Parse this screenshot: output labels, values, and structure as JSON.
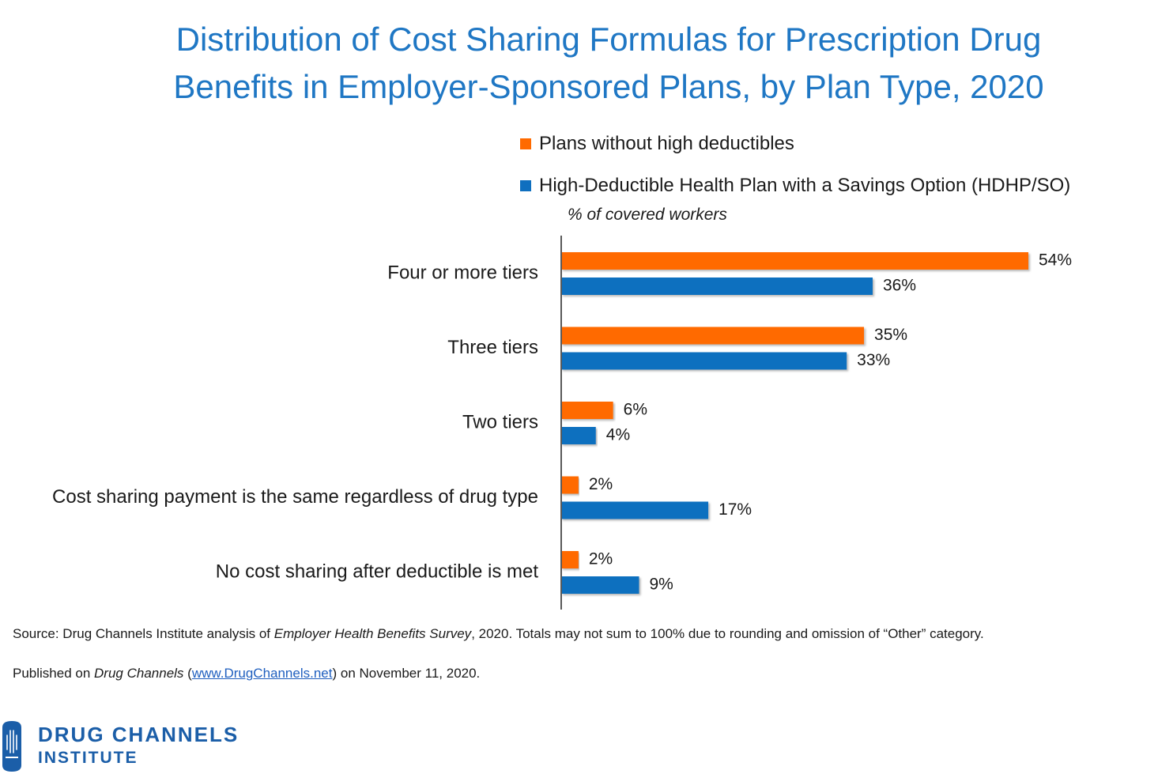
{
  "title": {
    "line1": "Distribution of Cost Sharing Formulas for Prescription Drug",
    "line2": "Benefits in Employer-Sponsored Plans, by Plan Type, 2020"
  },
  "legend": {
    "series_a": "Plans without high deductibles",
    "series_b": "High-Deductible Health Plan with a Savings Option (HDHP/SO)"
  },
  "axis_note": "% of covered workers",
  "colors": {
    "title": "#1f77c4",
    "series_a": "#ff6a00",
    "series_b": "#0f6fbf",
    "axis": "#595959"
  },
  "chart_data": {
    "type": "bar",
    "orientation": "horizontal",
    "title": "Distribution of Cost Sharing Formulas for Prescription Drug Benefits in Employer-Sponsored Plans, by Plan Type, 2020",
    "xlabel": "% of covered workers",
    "ylabel": "",
    "xlim": [
      0,
      60
    ],
    "grid": false,
    "legend_position": "top-right",
    "categories": [
      "Four or more tiers",
      "Three tiers",
      "Two tiers",
      "Cost sharing payment is the same regardless of drug type",
      "No cost sharing after deductible is met"
    ],
    "series": [
      {
        "name": "Plans without high deductibles",
        "color": "#ff6a00",
        "values": [
          54,
          35,
          6,
          2,
          2
        ],
        "labels": [
          "54%",
          "35%",
          "6%",
          "2%",
          "2%"
        ]
      },
      {
        "name": "High-Deductible Health Plan with a Savings Option (HDHP/SO)",
        "color": "#0f6fbf",
        "values": [
          36,
          33,
          4,
          17,
          9
        ],
        "labels": [
          "36%",
          "33%",
          "4%",
          "17%",
          "9%"
        ]
      }
    ]
  },
  "footer": {
    "source_prefix": "Source: Drug Channels Institute analysis of ",
    "source_italic": "Employer Health Benefits Survey",
    "source_suffix": ", 2020. Totals may not sum to 100% due to rounding and omission of “Other” category.",
    "published_prefix": "Published on ",
    "published_italic": "Drug Channels",
    "published_open": " (",
    "published_link": "www.DrugChannels.net",
    "published_suffix": ") on November 11, 2020."
  },
  "logo": {
    "line1": "DRUG CHANNELS",
    "line2": "INSTITUTE"
  }
}
